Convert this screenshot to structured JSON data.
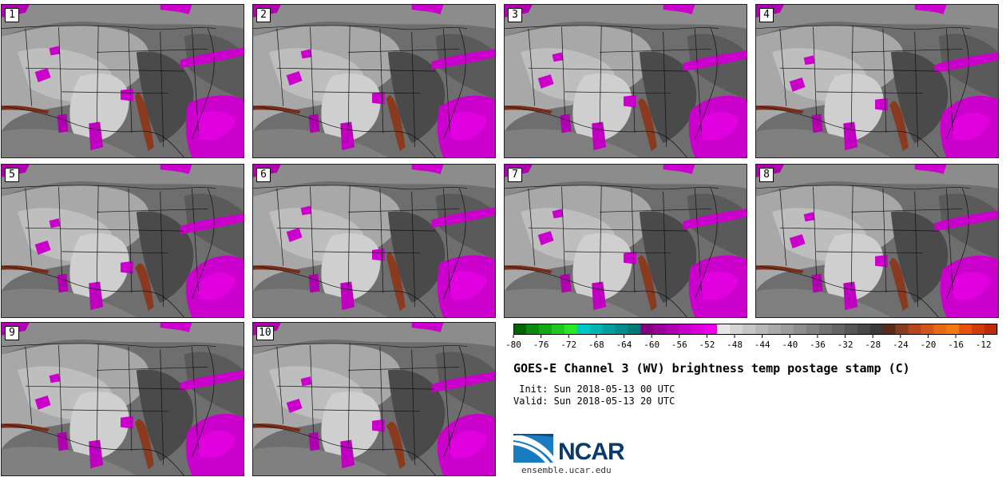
{
  "panels": [
    "1",
    "2",
    "3",
    "4",
    "5",
    "6",
    "7",
    "8",
    "9",
    "10"
  ],
  "colorbar": {
    "ticks": [
      -80,
      -76,
      -72,
      -68,
      -64,
      -60,
      -56,
      -52,
      -48,
      -44,
      -40,
      -36,
      -32,
      -28,
      -24,
      -20,
      -16,
      -12
    ],
    "range": [
      -80,
      -10
    ],
    "colors": [
      "#006400",
      "#0a8a0a",
      "#14a814",
      "#1ec81e",
      "#28e628",
      "#00c8c8",
      "#00b4b4",
      "#009f9f",
      "#008c8c",
      "#007878",
      "#850085",
      "#9a009a",
      "#b000b0",
      "#c800c8",
      "#dc00dc",
      "#ee00ee",
      "#e6e6e6",
      "#d4d4d4",
      "#c6c6c6",
      "#b8b8b8",
      "#aaaaaa",
      "#9c9c9c",
      "#8e8e8e",
      "#808080",
      "#727272",
      "#646464",
      "#565656",
      "#484848",
      "#3a3a3a",
      "#5a2a1a",
      "#8a3a1f",
      "#b4461c",
      "#d2551a",
      "#e86a14",
      "#f07a10",
      "#e85010",
      "#d23c0a",
      "#c02a08"
    ]
  },
  "title": "GOES-E Channel 3 (WV) brightness temp postage stamp (C)",
  "init_line": " Init: Sun 2018-05-13 00 UTC",
  "valid_line": "Valid: Sun 2018-05-13 20 UTC",
  "logo_text": "NCAR",
  "site": "ensemble.ucar.edu"
}
